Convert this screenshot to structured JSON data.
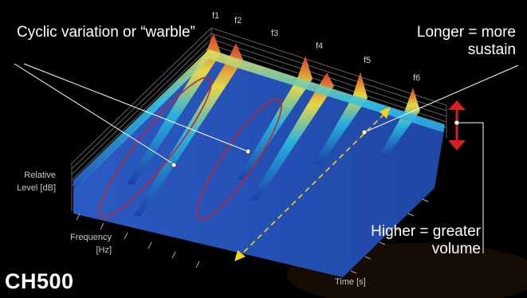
{
  "chart_data": {
    "type": "waterfall-spectrogram",
    "model": "CH500",
    "axes": {
      "z_label": "Relative Level [dB]",
      "y_label": "Frequency [Hz]",
      "x_label": "Time [s]"
    },
    "peaks": [
      "f1",
      "f2",
      "f3",
      "f4",
      "f5",
      "f6"
    ],
    "annotations": {
      "warble": "Cyclic variation or “warble”",
      "sustain": "Longer = more sustain",
      "volume": "Higher = greater volume"
    },
    "colors": {
      "background": "#000000",
      "low": "#1c3fa8",
      "mid": "#27b6e0",
      "high": "#f0e040",
      "peak": "#e0402a",
      "ellipse": "#c0282a",
      "arrow_red": "#d81e1e",
      "arrow_yellow": "#f2d21a"
    }
  }
}
